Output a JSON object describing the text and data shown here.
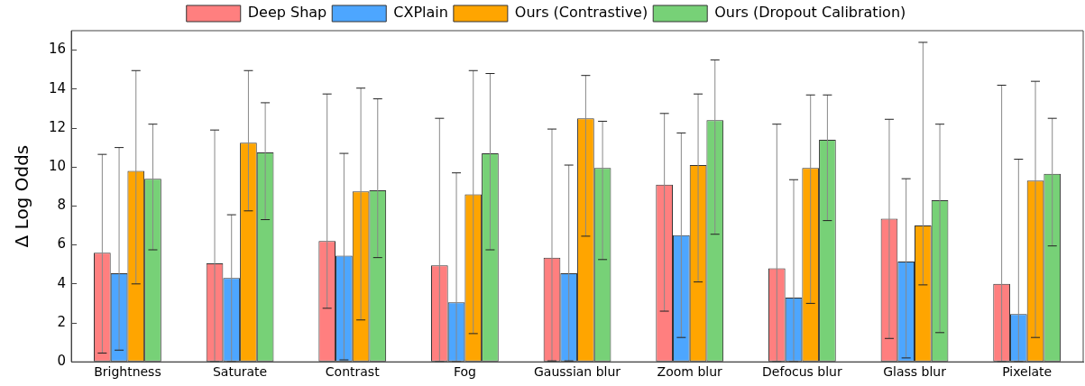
{
  "chart_data": {
    "type": "bar",
    "ylabel": "Δ Log Odds",
    "categories": [
      "Brightness",
      "Saturate",
      "Contrast",
      "Fog",
      "Gaussian blur",
      "Zoom blur",
      "Defocus blur",
      "Glass blur",
      "Pixelate"
    ],
    "series": [
      {
        "name": "Deep Shap",
        "color": "#ff7f7f",
        "values": [
          5.6,
          5.05,
          6.2,
          4.95,
          5.35,
          9.1,
          4.8,
          7.35,
          4.0
        ],
        "errors": [
          [
            0.45,
            10.65
          ],
          [
            0,
            11.9
          ],
          [
            2.75,
            13.75
          ],
          [
            0,
            12.5
          ],
          [
            0.05,
            11.95
          ],
          [
            2.6,
            12.75
          ],
          [
            0,
            12.2
          ],
          [
            1.2,
            12.45
          ],
          [
            0,
            14.2
          ]
        ]
      },
      {
        "name": "CXPlain",
        "color": "#4da6ff",
        "values": [
          4.55,
          4.3,
          5.45,
          3.05,
          4.55,
          6.5,
          3.3,
          5.15,
          2.45
        ],
        "errors": [
          [
            0.6,
            11.0
          ],
          [
            0,
            7.55
          ],
          [
            0.1,
            10.7
          ],
          [
            0,
            9.7
          ],
          [
            0.05,
            10.1
          ],
          [
            1.25,
            11.75
          ],
          [
            0,
            9.35
          ],
          [
            0.2,
            9.4
          ],
          [
            0,
            10.4
          ]
        ]
      },
      {
        "name": "Ours (Contrastive)",
        "color": "#ffa500",
        "values": [
          9.8,
          11.25,
          8.75,
          8.6,
          12.5,
          10.1,
          9.95,
          7.0,
          9.3
        ],
        "errors": [
          [
            4.0,
            14.95
          ],
          [
            7.75,
            14.95
          ],
          [
            2.15,
            14.05
          ],
          [
            1.45,
            14.95
          ],
          [
            6.45,
            14.7
          ],
          [
            4.1,
            13.75
          ],
          [
            3.0,
            13.7
          ],
          [
            3.95,
            16.4
          ],
          [
            1.25,
            14.4
          ]
        ]
      },
      {
        "name": "Ours (Dropout Calibration)",
        "color": "#77d177",
        "values": [
          9.4,
          10.75,
          8.8,
          10.7,
          9.95,
          12.4,
          11.4,
          8.3,
          9.65
        ],
        "errors": [
          [
            5.75,
            12.2
          ],
          [
            7.3,
            13.3
          ],
          [
            5.35,
            13.5
          ],
          [
            5.75,
            14.8
          ],
          [
            5.25,
            12.35
          ],
          [
            6.55,
            15.5
          ],
          [
            7.25,
            13.7
          ],
          [
            1.5,
            12.2
          ],
          [
            5.95,
            12.5
          ]
        ]
      }
    ],
    "ylim": [
      0,
      17
    ],
    "yticks": [
      0,
      2,
      4,
      6,
      8,
      10,
      12,
      14,
      16
    ],
    "grid": false,
    "legend": "top"
  }
}
